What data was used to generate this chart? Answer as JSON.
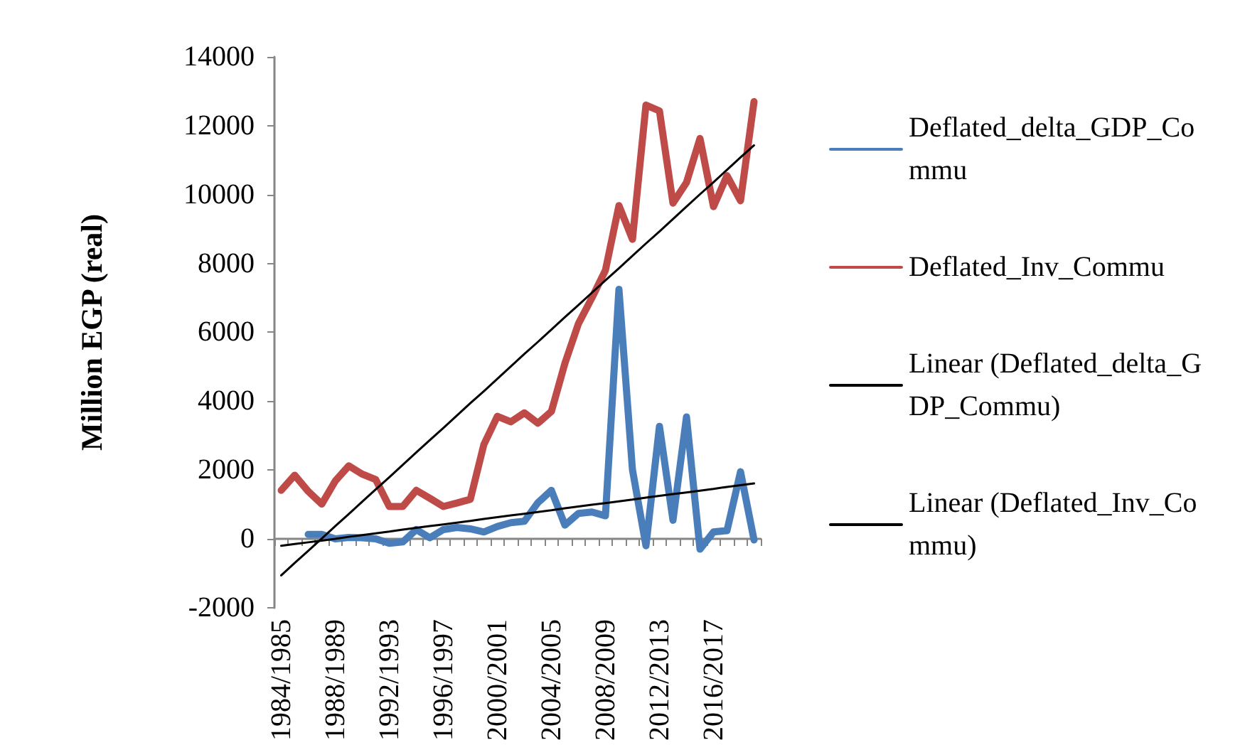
{
  "chart_data": {
    "type": "line",
    "ylabel": "Million EGP (real)",
    "categories": [
      "1984/1985",
      null,
      null,
      null,
      "1988/1989",
      null,
      null,
      null,
      "1992/1993",
      null,
      null,
      null,
      "1996/1997",
      null,
      null,
      null,
      "2000/2001",
      null,
      null,
      null,
      "2004/2005",
      null,
      null,
      null,
      "2008/2009",
      null,
      null,
      null,
      "2012/2013",
      null,
      null,
      null,
      "2016/2017",
      null,
      null,
      null
    ],
    "ylim": [
      -2000,
      14000
    ],
    "yticks": [
      -2000,
      0,
      2000,
      4000,
      6000,
      8000,
      10000,
      12000,
      14000
    ],
    "legend": "right",
    "marker": "none",
    "line_style": "solid",
    "series": [
      {
        "name": "Deflated_delta_GDP_Commu",
        "color": "#4a7ebb",
        "values": [
          null,
          null,
          130,
          130,
          0,
          40,
          30,
          0,
          -130,
          -90,
          270,
          30,
          270,
          330,
          290,
          200,
          360,
          470,
          510,
          1050,
          1410,
          400,
          740,
          780,
          670,
          7250,
          2010,
          -200,
          3270,
          540,
          3540,
          -300,
          200,
          240,
          1950,
          -30
        ]
      },
      {
        "name": "Deflated_Inv_Commu",
        "color": "#be4b48",
        "values": [
          1410,
          1850,
          1380,
          1010,
          1680,
          2120,
          1880,
          1720,
          940,
          940,
          1410,
          1180,
          940,
          1040,
          1150,
          2740,
          3560,
          3400,
          3660,
          3360,
          3700,
          5100,
          6250,
          7000,
          7800,
          9680,
          8700,
          12600,
          12430,
          9750,
          10350,
          11630,
          9650,
          10550,
          9820,
          12700
        ]
      },
      {
        "name": "Linear (Deflated_delta_GDP_Commu)",
        "color": "#000000",
        "values": [
          -200,
          -150,
          -100,
          -50,
          0,
          60,
          110,
          160,
          210,
          270,
          320,
          370,
          420,
          470,
          520,
          580,
          630,
          680,
          730,
          780,
          830,
          890,
          940,
          990,
          1040,
          1090,
          1140,
          1200,
          1250,
          1300,
          1350,
          1400,
          1450,
          1510,
          1560,
          1610
        ]
      },
      {
        "name": "Linear (Deflated_Inv_Commu)",
        "color": "#000000",
        "values": [
          -1060,
          -700,
          -350,
          10,
          370,
          720,
          1080,
          1440,
          1790,
          2150,
          2510,
          2870,
          3220,
          3580,
          3940,
          4290,
          4650,
          5010,
          5370,
          5720,
          6080,
          6440,
          6790,
          7150,
          7510,
          7860,
          8220,
          8580,
          8930,
          9290,
          9650,
          10010,
          10360,
          10720,
          11080,
          11430
        ]
      }
    ]
  }
}
